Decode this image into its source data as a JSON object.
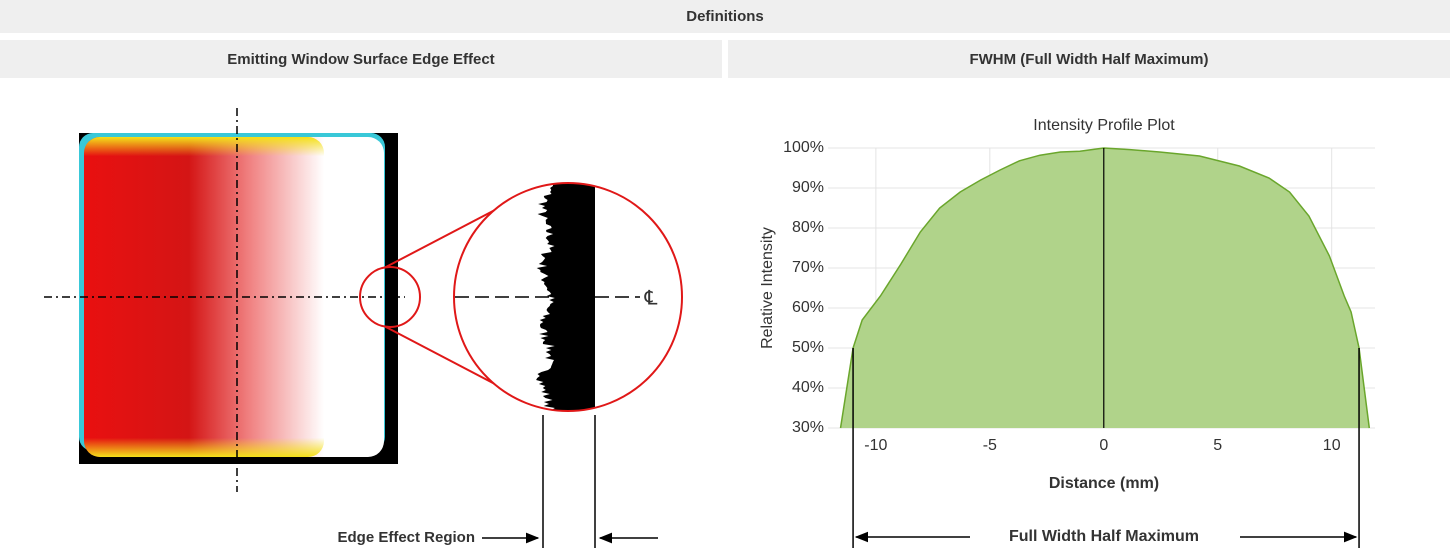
{
  "header": {
    "title": "Definitions"
  },
  "columns": [
    "Emitting Window Surface Edge Effect",
    "FWHM (Full Width Half Maximum)"
  ],
  "edge_effect": {
    "label": "Edge Effect Region",
    "center_line_symbol": "℄"
  },
  "chart_data": {
    "type": "area",
    "title": "Intensity Profile Plot",
    "x_label": "Distance (mm)",
    "y_label": "Relative Intensity",
    "annotation": "Full Width Half Maximum",
    "color": "#b0d38a",
    "line_color": "#6aa62c",
    "x": [
      -11.55,
      -11.0,
      -10.6,
      -9.8,
      -8.9,
      -8.05,
      -7.2,
      -6.3,
      -5.4,
      -4.55,
      -3.7,
      -2.8,
      -1.9,
      -1.05,
      0,
      1.15,
      2.45,
      4.2,
      5.95,
      7.25,
      8.15,
      9.0,
      9.9,
      10.55,
      10.85,
      11.2,
      11.65
    ],
    "values": [
      30,
      50,
      57,
      63,
      71,
      79,
      85,
      89,
      92,
      94.5,
      96.8,
      98.2,
      99,
      99.2,
      100,
      99.6,
      99,
      98,
      95.5,
      92.5,
      89,
      83,
      73,
      63,
      59,
      50,
      30
    ],
    "xlim": [
      -12.1,
      11.9
    ],
    "ylim": [
      30,
      100
    ],
    "xticks": [
      -10,
      -5,
      0,
      5,
      10
    ],
    "yticks": [
      {
        "value": 30,
        "label": "30%"
      },
      {
        "value": 40,
        "label": "40%"
      },
      {
        "value": 50,
        "label": "50%"
      },
      {
        "value": 60,
        "label": "60%"
      },
      {
        "value": 70,
        "label": "70%"
      },
      {
        "value": 80,
        "label": "80%"
      },
      {
        "value": 90,
        "label": "90%"
      },
      {
        "value": 100,
        "label": "100%"
      }
    ],
    "grid": true
  }
}
